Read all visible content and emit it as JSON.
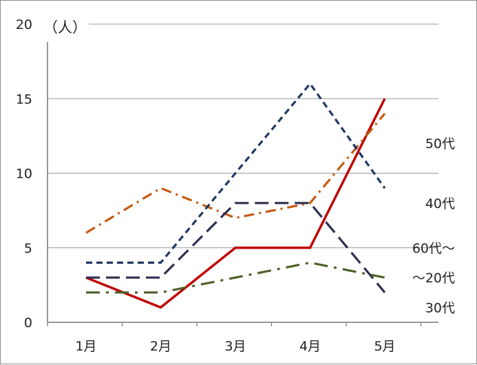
{
  "chart_data": {
    "type": "line",
    "categories": [
      "1月",
      "2月",
      "3月",
      "4月",
      "5月"
    ],
    "ylim": [
      0,
      20
    ],
    "yticks": [
      0,
      5,
      10,
      15,
      20
    ],
    "ylabel": "（人）",
    "grid": true,
    "legend": "none",
    "series": [
      {
        "name": "60代〜",
        "values": [
          3,
          1,
          5,
          5,
          15
        ],
        "color": "#c00000",
        "dash": "solid",
        "label_y": 5
      },
      {
        "name": "50代",
        "values": [
          6,
          9,
          7,
          8,
          14
        ],
        "color": "#c55a11",
        "dash": "dashdot",
        "label_y": 12
      },
      {
        "name": "40代",
        "values": [
          4,
          4,
          10,
          16,
          9
        ],
        "color": "#1f3864",
        "dash": "short",
        "label_y": 8
      },
      {
        "name": "〜20代",
        "values": [
          3,
          3,
          8,
          8,
          2
        ],
        "color": "#2e2e50",
        "dash": "long",
        "label_y": 3
      },
      {
        "name": "30代",
        "values": [
          2,
          2,
          3,
          4,
          3
        ],
        "color": "#4f6228",
        "dash": "longdashdot",
        "label_y": 1
      }
    ]
  }
}
